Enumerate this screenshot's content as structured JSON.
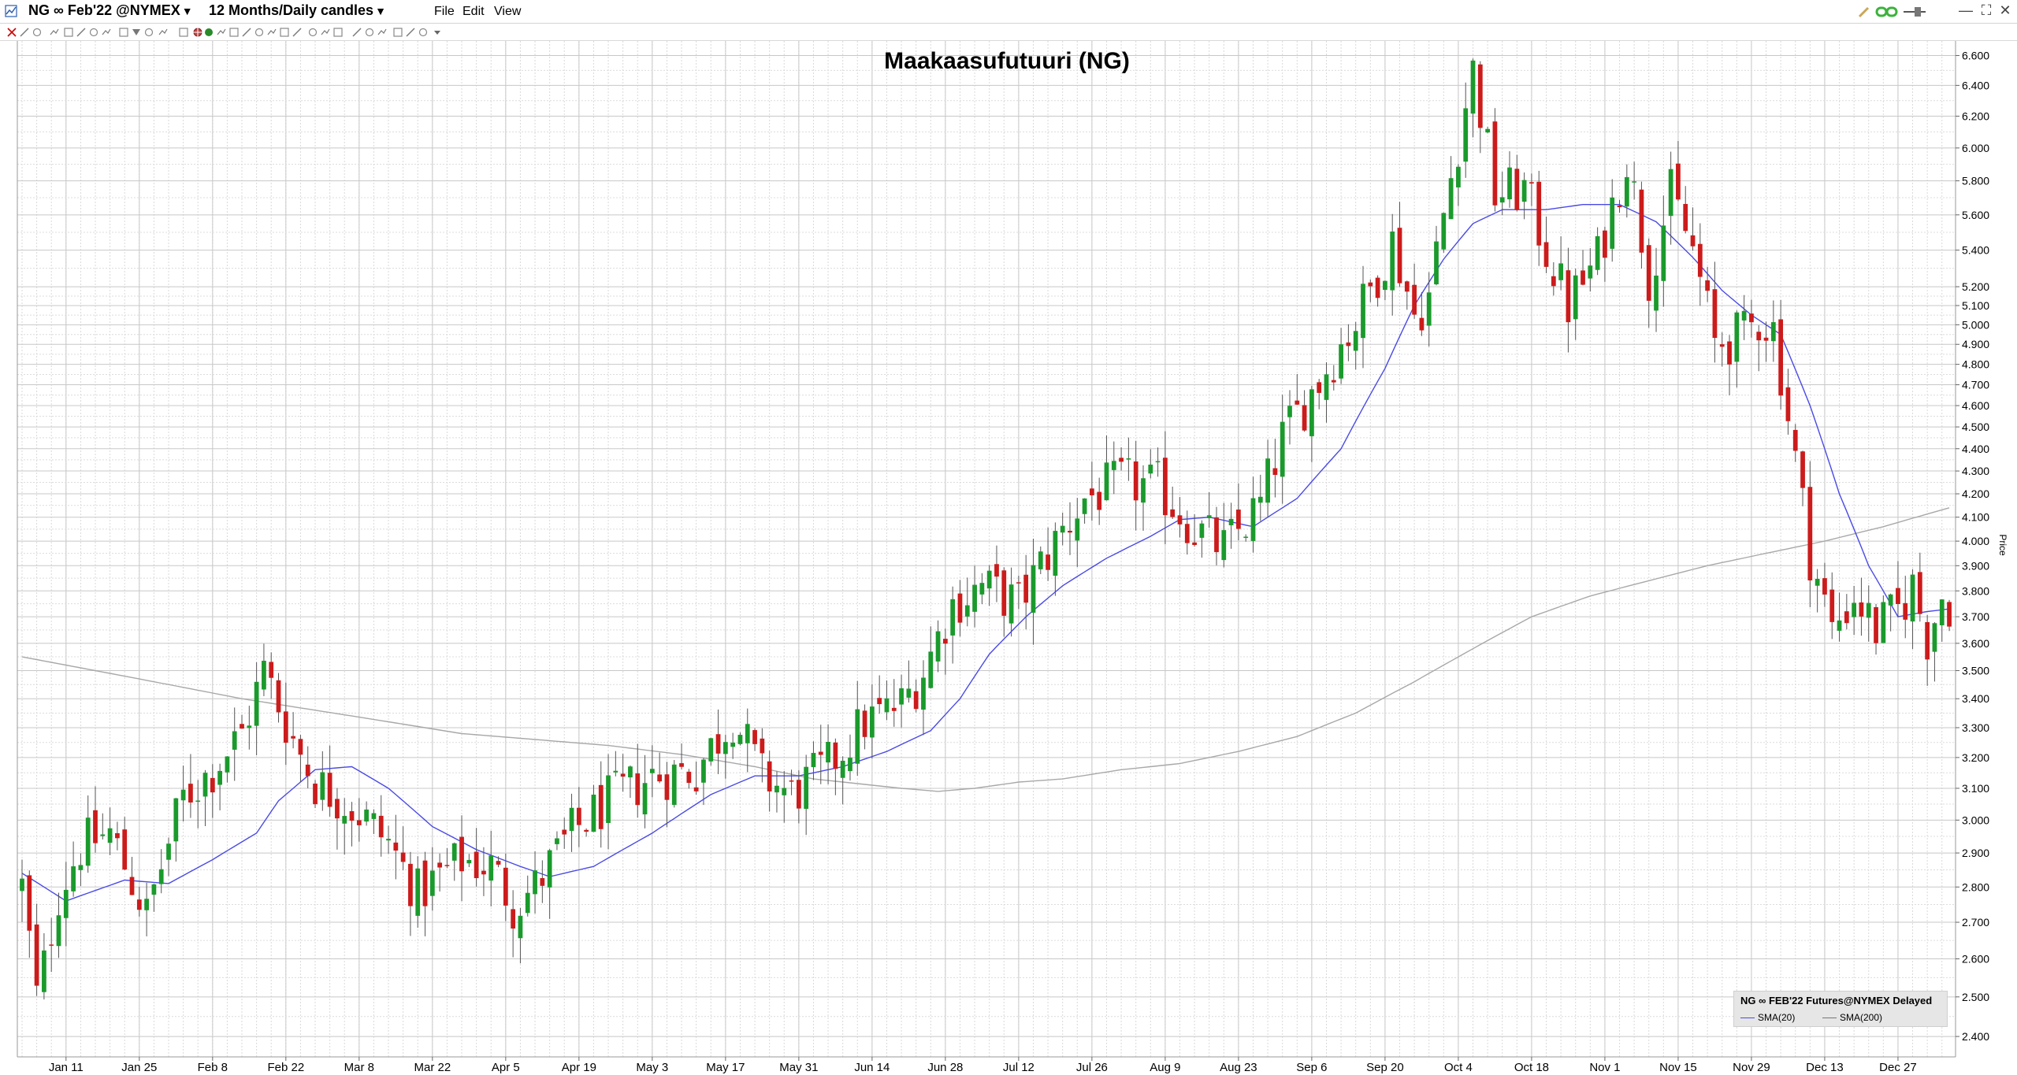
{
  "window": {
    "title": "NG ∞ Feb'22 @NYMEX",
    "timeframe": "12 Months/Daily candles",
    "menus": [
      "File",
      "Edit",
      "View"
    ],
    "icons": [
      "chart-app-icon",
      "link-icon",
      "pin-icon",
      "minimize-icon",
      "maximize-icon",
      "close-icon"
    ]
  },
  "legend": {
    "title": "NG ∞ FEB'22 Futures@NYMEX Delayed",
    "sma20_label": "SMA(20)",
    "sma200_label": "SMA(200)"
  },
  "colors": {
    "up": "#1a9a2c",
    "down": "#cc1b1b",
    "sma20": "#4a4ae6",
    "sma200": "#a8a8a8",
    "grid": "#c8c8c8"
  },
  "chart_data": {
    "type": "candlestick",
    "title": "Maakaasufutuuri (NG)",
    "xlabel": "",
    "ylabel": "Price",
    "ylim": [
      2.35,
      6.7
    ],
    "y_scale": "log",
    "grid": true,
    "legend_position": "bottom-right",
    "y_ticks": [
      "2.400",
      "2.500",
      "2.600",
      "2.700",
      "2.800",
      "2.900",
      "3.000",
      "3.100",
      "3.200",
      "3.300",
      "3.400",
      "3.500",
      "3.600",
      "3.700",
      "3.800",
      "3.900",
      "4.000",
      "4.100",
      "4.200",
      "4.300",
      "4.400",
      "4.500",
      "4.600",
      "4.700",
      "4.800",
      "4.900",
      "5.000",
      "5.100",
      "5.200",
      "5.400",
      "5.600",
      "5.800",
      "6.000",
      "6.200",
      "6.400",
      "6.600"
    ],
    "x_ticks": [
      "Jan 11",
      "Jan 25",
      "Feb 8",
      "Feb 22",
      "Mar 8",
      "Mar 22",
      "Apr 5",
      "Apr 19",
      "May 3",
      "May 17",
      "May 31",
      "Jun 14",
      "Jun 28",
      "Jul 12",
      "Jul 26",
      "Aug 9",
      "Aug 23",
      "Sep 6",
      "Sep 20",
      "Oct 4",
      "Oct 18",
      "Nov 1",
      "Nov 15",
      "Nov 29",
      "Dec 13",
      "Dec 27"
    ],
    "x_tick_index": [
      6,
      16,
      26,
      36,
      46,
      56,
      66,
      76,
      86,
      96,
      106,
      116,
      126,
      136,
      146,
      156,
      166,
      176,
      186,
      196,
      206,
      216,
      226,
      236,
      246,
      256
    ],
    "anchors": [
      [
        0,
        2.8
      ],
      [
        2,
        2.5
      ],
      [
        3,
        2.58
      ],
      [
        5,
        2.78
      ],
      [
        8,
        2.92
      ],
      [
        12,
        2.96
      ],
      [
        17,
        2.72
      ],
      [
        19,
        2.86
      ],
      [
        22,
        3.07
      ],
      [
        26,
        3.16
      ],
      [
        30,
        3.28
      ],
      [
        33,
        3.5
      ],
      [
        37,
        3.26
      ],
      [
        40,
        3.12
      ],
      [
        44,
        3.06
      ],
      [
        47,
        3.0
      ],
      [
        50,
        2.93
      ],
      [
        54,
        2.78
      ],
      [
        60,
        2.88
      ],
      [
        64,
        2.86
      ],
      [
        67,
        2.75
      ],
      [
        70,
        2.8
      ],
      [
        75,
        2.96
      ],
      [
        80,
        3.06
      ],
      [
        86,
        3.14
      ],
      [
        92,
        3.16
      ],
      [
        97,
        3.34
      ],
      [
        101,
        3.14
      ],
      [
        105,
        3.08
      ],
      [
        110,
        3.17
      ],
      [
        115,
        3.32
      ],
      [
        120,
        3.38
      ],
      [
        123,
        3.5
      ],
      [
        127,
        3.75
      ],
      [
        131,
        3.82
      ],
      [
        136,
        3.75
      ],
      [
        140,
        3.95
      ],
      [
        145,
        4.18
      ],
      [
        150,
        4.25
      ],
      [
        155,
        4.23
      ],
      [
        160,
        4.05
      ],
      [
        164,
        3.97
      ],
      [
        169,
        4.15
      ],
      [
        172,
        4.45
      ],
      [
        177,
        4.72
      ],
      [
        182,
        5.02
      ],
      [
        187,
        5.45
      ],
      [
        190,
        5.05
      ],
      [
        192,
        5.15
      ],
      [
        196,
        6.05
      ],
      [
        198,
        6.5
      ],
      [
        201,
        5.72
      ],
      [
        205,
        5.75
      ],
      [
        208,
        5.4
      ],
      [
        211,
        5.1
      ],
      [
        215,
        5.35
      ],
      [
        219,
        5.95
      ],
      [
        222,
        5.25
      ],
      [
        225,
        5.72
      ],
      [
        228,
        5.4
      ],
      [
        231,
        4.9
      ],
      [
        235,
        4.95
      ],
      [
        237,
        5.03
      ],
      [
        239,
        4.98
      ],
      [
        241,
        4.55
      ],
      [
        244,
        3.95
      ],
      [
        247,
        3.65
      ],
      [
        250,
        3.78
      ],
      [
        253,
        3.65
      ],
      [
        256,
        3.72
      ],
      [
        258,
        3.82
      ],
      [
        260,
        3.62
      ],
      [
        262,
        3.78
      ],
      [
        263,
        3.75
      ]
    ],
    "n_bars": 264,
    "sma20_path": [
      [
        0,
        2.84
      ],
      [
        6,
        2.76
      ],
      [
        14,
        2.82
      ],
      [
        20,
        2.81
      ],
      [
        26,
        2.88
      ],
      [
        32,
        2.96
      ],
      [
        35,
        3.06
      ],
      [
        40,
        3.16
      ],
      [
        45,
        3.17
      ],
      [
        50,
        3.1
      ],
      [
        56,
        2.98
      ],
      [
        62,
        2.91
      ],
      [
        68,
        2.86
      ],
      [
        72,
        2.83
      ],
      [
        78,
        2.86
      ],
      [
        86,
        2.96
      ],
      [
        94,
        3.08
      ],
      [
        100,
        3.14
      ],
      [
        106,
        3.14
      ],
      [
        112,
        3.17
      ],
      [
        118,
        3.22
      ],
      [
        124,
        3.29
      ],
      [
        128,
        3.4
      ],
      [
        132,
        3.56
      ],
      [
        137,
        3.7
      ],
      [
        142,
        3.82
      ],
      [
        148,
        3.93
      ],
      [
        154,
        4.02
      ],
      [
        158,
        4.09
      ],
      [
        162,
        4.1
      ],
      [
        168,
        4.06
      ],
      [
        174,
        4.18
      ],
      [
        180,
        4.4
      ],
      [
        186,
        4.78
      ],
      [
        190,
        5.1
      ],
      [
        194,
        5.35
      ],
      [
        198,
        5.55
      ],
      [
        202,
        5.63
      ],
      [
        208,
        5.63
      ],
      [
        213,
        5.66
      ],
      [
        218,
        5.66
      ],
      [
        223,
        5.56
      ],
      [
        228,
        5.36
      ],
      [
        232,
        5.18
      ],
      [
        236,
        5.05
      ],
      [
        240,
        4.95
      ],
      [
        244,
        4.6
      ],
      [
        248,
        4.2
      ],
      [
        252,
        3.9
      ],
      [
        256,
        3.7
      ],
      [
        260,
        3.72
      ],
      [
        263,
        3.73
      ]
    ],
    "sma200_path": [
      [
        0,
        3.55
      ],
      [
        10,
        3.5
      ],
      [
        20,
        3.45
      ],
      [
        30,
        3.4
      ],
      [
        40,
        3.36
      ],
      [
        50,
        3.32
      ],
      [
        60,
        3.28
      ],
      [
        70,
        3.26
      ],
      [
        80,
        3.24
      ],
      [
        90,
        3.21
      ],
      [
        100,
        3.17
      ],
      [
        108,
        3.13
      ],
      [
        116,
        3.11
      ],
      [
        120,
        3.1
      ],
      [
        125,
        3.09
      ],
      [
        130,
        3.1
      ],
      [
        136,
        3.12
      ],
      [
        142,
        3.13
      ],
      [
        150,
        3.16
      ],
      [
        158,
        3.18
      ],
      [
        166,
        3.22
      ],
      [
        174,
        3.27
      ],
      [
        182,
        3.35
      ],
      [
        190,
        3.46
      ],
      [
        198,
        3.58
      ],
      [
        206,
        3.7
      ],
      [
        214,
        3.78
      ],
      [
        222,
        3.84
      ],
      [
        230,
        3.9
      ],
      [
        238,
        3.95
      ],
      [
        246,
        4.0
      ],
      [
        254,
        4.06
      ],
      [
        263,
        4.14
      ]
    ]
  }
}
